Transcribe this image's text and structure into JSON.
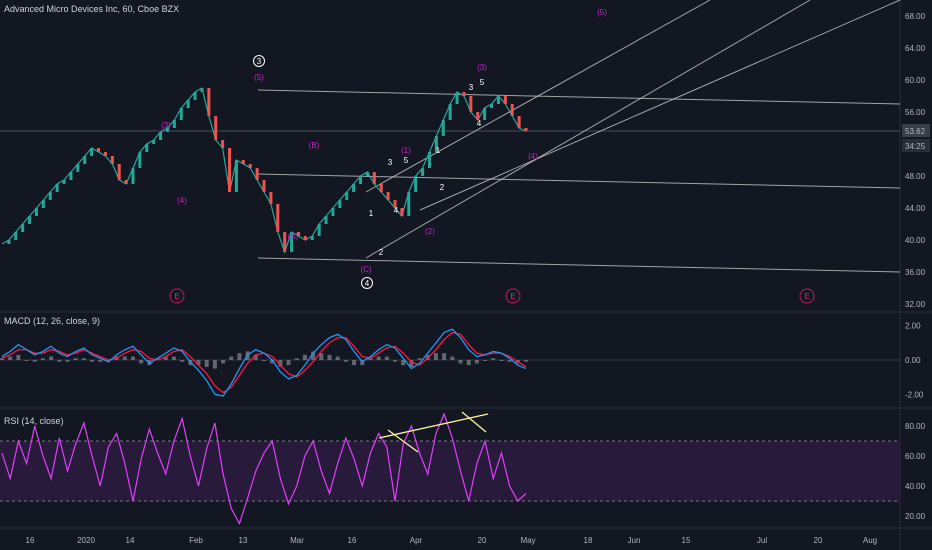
{
  "header": {
    "symbol": "Advanced Micro Devices Inc, 60, Cboe BZX"
  },
  "colors": {
    "background": "#131722",
    "wave_label": "#c822c8",
    "macd_line": "#2196f3",
    "signal_line": "#ff1744",
    "rsi_line": "#e040fb",
    "rsi_band": "#2a1b3d",
    "trendline": "#c8c8c8",
    "rsi_divergence": "#fff59d"
  },
  "chart_data": [
    {
      "type": "line",
      "title": "Advanced Micro Devices Inc, 60, Cboe BZX",
      "ylim": [
        31,
        70
      ],
      "y_ticks": [
        "68.00",
        "64.00",
        "60.00",
        "56.00",
        "52.00",
        "48.00",
        "44.00",
        "40.00",
        "36.00",
        "32.00"
      ],
      "price_labels": {
        "last": "53.62",
        "second": "34:25"
      },
      "x_ticks": [
        "16",
        "2020",
        "14",
        "Feb",
        "13",
        "Mar",
        "16",
        "Apr",
        "20",
        "May",
        "18",
        "Jun",
        "15",
        "Jul",
        "20",
        "Aug"
      ],
      "series": [
        {
          "values": [
            39.5,
            40,
            41,
            42,
            43,
            44,
            45,
            46,
            47,
            47.5,
            48.5,
            49.5,
            50.5,
            51.5,
            51,
            50.5,
            49.5,
            47.5,
            47,
            49,
            51,
            52,
            52.5,
            53.5,
            54,
            55,
            56.5,
            57.5,
            58.5,
            59,
            55.5,
            52.5,
            51.5,
            46,
            50,
            49.5,
            49,
            47.5,
            46,
            44.5,
            41,
            38.5,
            41,
            40.5,
            40,
            40.5,
            42,
            43,
            44,
            45,
            46,
            47,
            48,
            48.5,
            47,
            46,
            45,
            44,
            43,
            46,
            48,
            49,
            51,
            53,
            55,
            57,
            58.5,
            58,
            56,
            55,
            56.5,
            57,
            58,
            57,
            55.5,
            54,
            53.6
          ]
        }
      ],
      "wave_labels_purple": [
        "(3)",
        "(4)",
        "(5)",
        "(B)",
        "(A)",
        "(C)",
        "(1)",
        "(2)",
        "(3)",
        "(4)",
        "(5)"
      ],
      "wave_labels_white": [
        "1",
        "2",
        "3",
        "4",
        "5",
        "1",
        "2",
        "3",
        "4",
        "5"
      ],
      "circled_labels": [
        "3",
        "4"
      ],
      "events": [
        "E",
        "E",
        "E"
      ]
    },
    {
      "type": "line",
      "title": "MACD (12, 26, close, 9)",
      "ylim": [
        -2.8,
        2.8
      ],
      "y_ticks": [
        "2.00",
        "0.00",
        "-2.00"
      ],
      "series": [
        {
          "name": "MACD",
          "values": [
            0.2,
            0.5,
            0.9,
            0.6,
            0.3,
            0.5,
            0.8,
            0.4,
            0.2,
            0.5,
            0.7,
            0.3,
            0.1,
            -0.1,
            0.3,
            0.6,
            0.8,
            0.3,
            -0.2,
            0.1,
            0.4,
            0.7,
            0.5,
            -0.1,
            -0.6,
            -1.2,
            -2.0,
            -2.1,
            -1.4,
            -0.5,
            0.3,
            0.6,
            0.4,
            0.0,
            -0.7,
            -1.1,
            -0.9,
            -0.3,
            0.4,
            0.9,
            1.3,
            1.5,
            1.2,
            0.5,
            -0.1,
            0.2,
            0.6,
            0.9,
            0.7,
            0.1,
            -0.5,
            -0.2,
            0.4,
            1.0,
            1.6,
            1.8,
            1.3,
            0.6,
            0.2,
            0.3,
            0.5,
            0.4,
            0.1,
            -0.3,
            -0.5
          ]
        },
        {
          "name": "Signal",
          "values": [
            0.1,
            0.3,
            0.6,
            0.6,
            0.4,
            0.4,
            0.6,
            0.5,
            0.3,
            0.4,
            0.6,
            0.4,
            0.2,
            0.0,
            0.1,
            0.4,
            0.6,
            0.5,
            0.1,
            0.0,
            0.2,
            0.5,
            0.6,
            0.2,
            -0.3,
            -0.8,
            -1.5,
            -1.9,
            -1.6,
            -0.9,
            -0.2,
            0.3,
            0.4,
            0.2,
            -0.3,
            -0.8,
            -1.0,
            -0.6,
            -0.1,
            0.5,
            1.0,
            1.3,
            1.3,
            0.8,
            0.2,
            0.1,
            0.4,
            0.7,
            0.8,
            0.4,
            -0.1,
            -0.3,
            0.1,
            0.6,
            1.2,
            1.6,
            1.5,
            0.9,
            0.4,
            0.3,
            0.4,
            0.4,
            0.2,
            -0.1,
            -0.4
          ]
        }
      ]
    },
    {
      "type": "line",
      "title": "RSI (14, close)",
      "ylim": [
        12,
        92
      ],
      "y_ticks": [
        "80.00",
        "60.00",
        "40.00",
        "20.00"
      ],
      "band": [
        30,
        70
      ],
      "series": [
        {
          "name": "RSI",
          "values": [
            62,
            45,
            70,
            55,
            80,
            60,
            45,
            72,
            50,
            68,
            82,
            60,
            40,
            66,
            75,
            55,
            30,
            58,
            78,
            62,
            48,
            70,
            85,
            60,
            40,
            65,
            82,
            48,
            25,
            15,
            32,
            50,
            62,
            70,
            45,
            28,
            40,
            60,
            70,
            50,
            35,
            55,
            72,
            58,
            40,
            62,
            75,
            66,
            30,
            68,
            80,
            62,
            48,
            75,
            88,
            72,
            50,
            30,
            55,
            70,
            45,
            62,
            40,
            30,
            35
          ]
        }
      ]
    }
  ]
}
